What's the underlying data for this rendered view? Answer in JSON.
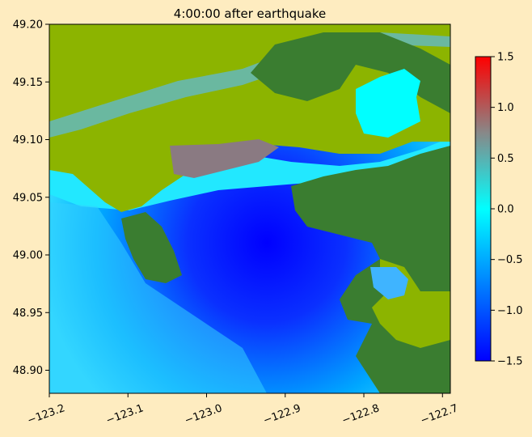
{
  "chart_data": {
    "type": "heatmap",
    "title": "4:00:00 after earthquake",
    "xlabel": "",
    "ylabel": "",
    "xlim": [
      -123.2,
      -122.69
    ],
    "ylim": [
      48.88,
      49.2
    ],
    "x_ticks": [
      -123.2,
      -123.1,
      -123.0,
      -122.9,
      -122.8,
      -122.7
    ],
    "x_tick_labels": [
      "−123.2",
      "−123.1",
      "−123.0",
      "−122.9",
      "−122.8",
      "−122.7"
    ],
    "y_ticks": [
      48.9,
      48.95,
      49.0,
      49.05,
      49.1,
      49.15,
      49.2
    ],
    "y_tick_labels": [
      "48.90",
      "48.95",
      "49.00",
      "49.05",
      "49.10",
      "49.15",
      "49.20"
    ],
    "colorbar": {
      "min": -1.5,
      "max": 1.5,
      "ticks": [
        -1.5,
        -1.0,
        -0.5,
        0.0,
        0.5,
        1.0,
        1.5
      ],
      "tick_labels": [
        "−1.5",
        "−1.0",
        "−0.5",
        "0.0",
        "0.5",
        "1.0",
        "1.5"
      ],
      "colors": [
        "#0000ff",
        "#00ffff",
        "#ff0000"
      ]
    },
    "land_colors": {
      "low": "#8cb400",
      "high": "#3a7d30"
    },
    "grid": false,
    "legend": "none"
  }
}
